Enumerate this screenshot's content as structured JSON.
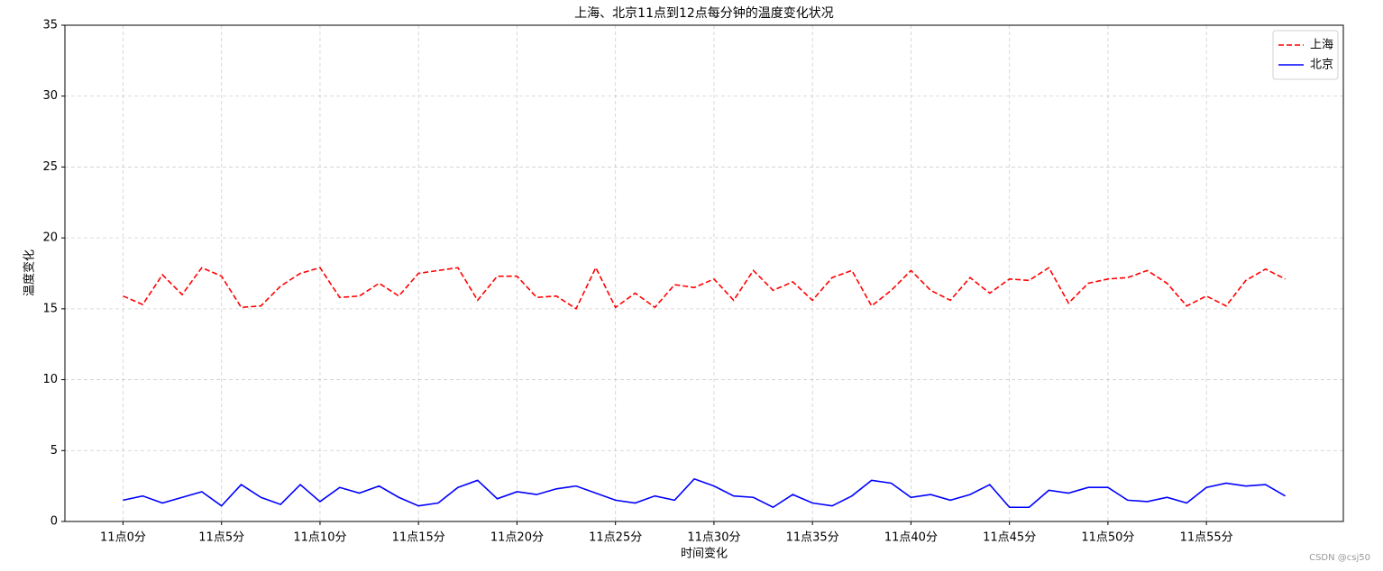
{
  "chart_data": {
    "type": "line",
    "title": "上海、北京11点到12点每分钟的温度变化状况",
    "x_label": "时间变化",
    "y_label": "温度变化",
    "categories": [
      "11点0分",
      null,
      null,
      null,
      null,
      "11点5分",
      null,
      null,
      null,
      null,
      "11点10分",
      null,
      null,
      null,
      null,
      "11点15分",
      null,
      null,
      null,
      null,
      "11点20分",
      null,
      null,
      null,
      null,
      "11点25分",
      null,
      null,
      null,
      null,
      "11点30分",
      null,
      null,
      null,
      null,
      "11点35分",
      null,
      null,
      null,
      null,
      "11点40分",
      null,
      null,
      null,
      null,
      "11点45分",
      null,
      null,
      null,
      null,
      "11点50分",
      null,
      null,
      null,
      null,
      "11点55分",
      null,
      null,
      null,
      null
    ],
    "series": [
      {
        "name": "上海",
        "color": "#ff0000",
        "linestyle": "dashed",
        "values": [
          15.9,
          15.3,
          17.4,
          16.0,
          17.9,
          17.3,
          15.1,
          15.2,
          16.6,
          17.5,
          17.9,
          15.8,
          15.9,
          16.8,
          15.9,
          17.5,
          17.7,
          17.9,
          15.6,
          17.3,
          17.3,
          15.8,
          15.9,
          15.0,
          17.9,
          15.1,
          16.1,
          15.1,
          16.7,
          16.5,
          17.1,
          15.6,
          17.7,
          16.3,
          16.9,
          15.6,
          17.2,
          17.7,
          15.2,
          16.3,
          17.7,
          16.3,
          15.6,
          17.2,
          16.1,
          17.1,
          17.0,
          17.9,
          15.4,
          16.8,
          17.1,
          17.2,
          17.7,
          16.8,
          15.2,
          15.9,
          15.2,
          17.0,
          17.8,
          17.1
        ]
      },
      {
        "name": "北京",
        "color": "#0000ff",
        "linestyle": "solid",
        "values": [
          1.5,
          1.8,
          1.3,
          1.7,
          2.1,
          1.1,
          2.6,
          1.7,
          1.2,
          2.6,
          1.4,
          2.4,
          2.0,
          2.5,
          1.7,
          1.1,
          1.3,
          2.4,
          2.9,
          1.6,
          2.1,
          1.9,
          2.3,
          2.5,
          2.0,
          1.5,
          1.3,
          1.8,
          1.5,
          3.0,
          2.5,
          1.8,
          1.7,
          1.0,
          1.9,
          1.3,
          1.1,
          1.8,
          2.9,
          2.7,
          1.7,
          1.9,
          1.5,
          1.9,
          2.6,
          1.0,
          1.0,
          2.2,
          2.0,
          2.4,
          2.4,
          1.5,
          1.4,
          1.7,
          1.3,
          2.4,
          2.7,
          2.5,
          2.6,
          1.8
        ]
      }
    ],
    "ylim": [
      0,
      35
    ],
    "yticks": [
      0,
      5,
      10,
      15,
      20,
      25,
      30,
      35
    ],
    "grid": true,
    "legend": "upper right",
    "watermark": "CSDN @csj50"
  }
}
